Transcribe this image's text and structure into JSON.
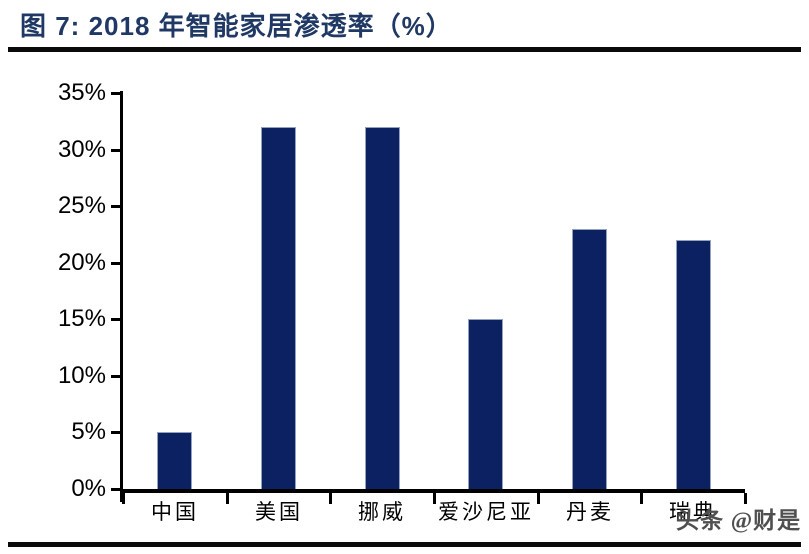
{
  "header": {
    "title": "图 7: 2018 年智能家居渗透率（%）"
  },
  "watermark": "头条 @财是",
  "chart_data": {
    "type": "bar",
    "title": "2018 年智能家居渗透率（%）",
    "figure_label": "图 7",
    "categories": [
      "中国",
      "美国",
      "挪威",
      "爱沙尼亚",
      "丹麦",
      "瑞典"
    ],
    "values": [
      5,
      32,
      32,
      15,
      23,
      22
    ],
    "xlabel": "",
    "ylabel": "",
    "ylim": [
      0,
      35
    ],
    "ytick_step": 5,
    "ytick_labels": [
      "0%",
      "5%",
      "10%",
      "15%",
      "20%",
      "25%",
      "30%",
      "35%"
    ],
    "grid": false,
    "legend_position": "none",
    "bar_color": "#0c2162",
    "axis_color": "#000000"
  },
  "colors": {
    "title": "#1f3864",
    "rule": "#0a0a0a",
    "watermark_text": "#4f4f4f"
  }
}
